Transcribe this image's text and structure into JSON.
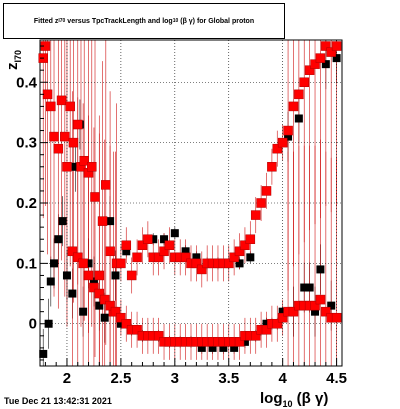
{
  "window": {
    "title_main": "Fitted",
    "title_z": "z",
    "title_z_sub": "I70",
    "title_mid": "versus TpcTrackLength and log",
    "title_log_sub": "10",
    "title_end": "(β γ) for Global proton",
    "timestamp": "Tue Dec 21 13:42:31 2021"
  },
  "chart_data": {
    "type": "scatter",
    "title": "Fitted z_I70 versus TpcTrackLength and log_10(β γ) for Global proton",
    "ylabel": "z_I70",
    "xlabel": "log_10(β γ)",
    "xlim": [
      1.75,
      4.55
    ],
    "ylim": [
      -0.07,
      0.47
    ],
    "x_ticks": [
      2,
      2.5,
      3,
      3.5,
      4,
      4.5
    ],
    "x_tick_labels": [
      "2",
      "2.5",
      "3",
      "3.5",
      "4",
      "4.5"
    ],
    "y_ticks": [
      0,
      0.1,
      0.2,
      0.3,
      0.4
    ],
    "y_tick_labels": [
      "0",
      "0.1",
      "0.2",
      "0.3",
      "0.4"
    ],
    "grid": true,
    "colors": {
      "red": "#ff0000",
      "black": "#000000",
      "errbar_red": "#cc0000"
    },
    "series": [
      {
        "color": "black",
        "x": [
          1.78,
          1.83,
          1.85,
          1.88,
          1.92,
          1.96,
          2.0,
          2.05,
          2.08,
          2.12,
          2.15,
          2.2,
          2.25,
          2.3,
          2.35,
          2.4,
          2.45,
          2.5,
          2.55,
          2.6,
          2.7,
          2.8,
          2.85,
          2.9,
          2.95,
          3.0,
          3.05,
          3.1,
          3.15,
          3.2,
          3.25,
          3.3,
          3.35,
          3.4,
          3.45,
          3.5,
          3.55,
          3.6,
          3.65,
          3.7,
          3.75,
          3.8,
          3.85,
          3.9,
          3.95,
          4.0,
          4.05,
          4.1,
          4.15,
          4.2,
          4.25,
          4.3,
          4.35,
          4.4,
          4.45,
          4.5
        ],
        "y": [
          -0.05,
          0.0,
          0.07,
          0.1,
          0.14,
          0.17,
          0.08,
          0.05,
          0.26,
          0.33,
          0.02,
          0.1,
          0.07,
          0.03,
          0.01,
          0.17,
          0.08,
          0.0,
          0.12,
          -0.01,
          -0.02,
          0.14,
          -0.02,
          0.14,
          -0.03,
          0.15,
          -0.03,
          0.12,
          -0.03,
          0.11,
          -0.04,
          0.1,
          -0.04,
          0.1,
          -0.04,
          0.1,
          -0.04,
          0.1,
          -0.03,
          0.11,
          -0.02,
          -0.01,
          0.0,
          0.0,
          0.0,
          0.02,
          0.31,
          0.02,
          0.34,
          0.06,
          0.06,
          0.02,
          0.09,
          0.43,
          0.03,
          0.44
        ]
      },
      {
        "color": "red",
        "x": [
          1.78,
          1.8,
          1.82,
          1.85,
          1.88,
          1.92,
          1.95,
          1.98,
          2.0,
          2.03,
          2.06,
          2.1,
          2.13,
          2.16,
          2.2,
          2.23,
          2.26,
          2.3,
          2.33,
          2.36,
          2.4,
          2.43,
          2.46,
          2.5,
          2.55,
          2.6,
          2.65,
          2.7,
          2.75,
          2.8,
          2.85,
          2.9,
          2.95,
          3.0,
          3.05,
          3.1,
          3.15,
          3.2,
          3.25,
          3.3,
          3.35,
          3.4,
          3.45,
          3.5,
          3.55,
          3.6,
          3.65,
          3.7,
          3.75,
          3.8,
          3.85,
          3.9,
          3.95,
          4.0,
          4.05,
          4.1,
          4.15,
          4.2,
          4.25,
          4.3,
          4.35,
          4.4,
          4.45,
          4.5
        ],
        "y": [
          0.44,
          0.46,
          0.38,
          0.36,
          0.31,
          0.29,
          0.37,
          0.31,
          0.26,
          0.36,
          0.3,
          0.33,
          0.26,
          0.27,
          0.25,
          0.26,
          0.21,
          0.08,
          0.17,
          0.23,
          0.12,
          0.02,
          0.1,
          0.1,
          0.13,
          0.08,
          0.11,
          0.13,
          0.14,
          0.11,
          0.11,
          0.12,
          0.13,
          0.11,
          0.11,
          0.11,
          0.1,
          0.1,
          0.09,
          0.1,
          0.1,
          0.1,
          0.1,
          0.1,
          0.11,
          0.12,
          0.13,
          0.14,
          0.18,
          0.2,
          0.22,
          0.26,
          0.29,
          0.3,
          0.32,
          0.36,
          0.38,
          0.4,
          0.42,
          0.43,
          0.44,
          0.46,
          0.45,
          0.46
        ]
      },
      {
        "color": "red",
        "x": [
          2.05,
          2.1,
          2.15,
          2.2,
          2.25,
          2.3,
          2.35,
          2.4,
          2.45,
          2.5,
          2.55,
          2.6,
          2.65,
          2.7,
          2.75,
          2.8,
          2.85,
          2.9,
          2.95,
          3.0,
          3.05,
          3.1,
          3.15,
          3.2,
          3.25,
          3.3,
          3.35,
          3.4,
          3.45,
          3.5,
          3.55,
          3.6,
          3.65,
          3.7,
          3.75,
          3.8,
          3.85,
          3.9,
          3.95,
          4.0,
          4.05,
          4.1,
          4.15,
          4.2,
          4.25,
          4.3,
          4.35,
          4.4,
          4.45,
          4.5
        ],
        "y": [
          0.12,
          0.11,
          0.1,
          0.08,
          0.06,
          0.05,
          0.04,
          0.03,
          0.02,
          0.01,
          0.0,
          -0.01,
          -0.01,
          -0.02,
          -0.02,
          -0.02,
          -0.02,
          -0.03,
          -0.03,
          -0.03,
          -0.03,
          -0.03,
          -0.03,
          -0.03,
          -0.03,
          -0.03,
          -0.03,
          -0.03,
          -0.03,
          -0.03,
          -0.03,
          -0.03,
          -0.02,
          -0.02,
          -0.02,
          -0.01,
          -0.01,
          0.0,
          0.0,
          0.01,
          0.02,
          0.02,
          0.03,
          0.03,
          0.03,
          0.03,
          0.04,
          0.02,
          0.01,
          0.01
        ]
      }
    ]
  }
}
